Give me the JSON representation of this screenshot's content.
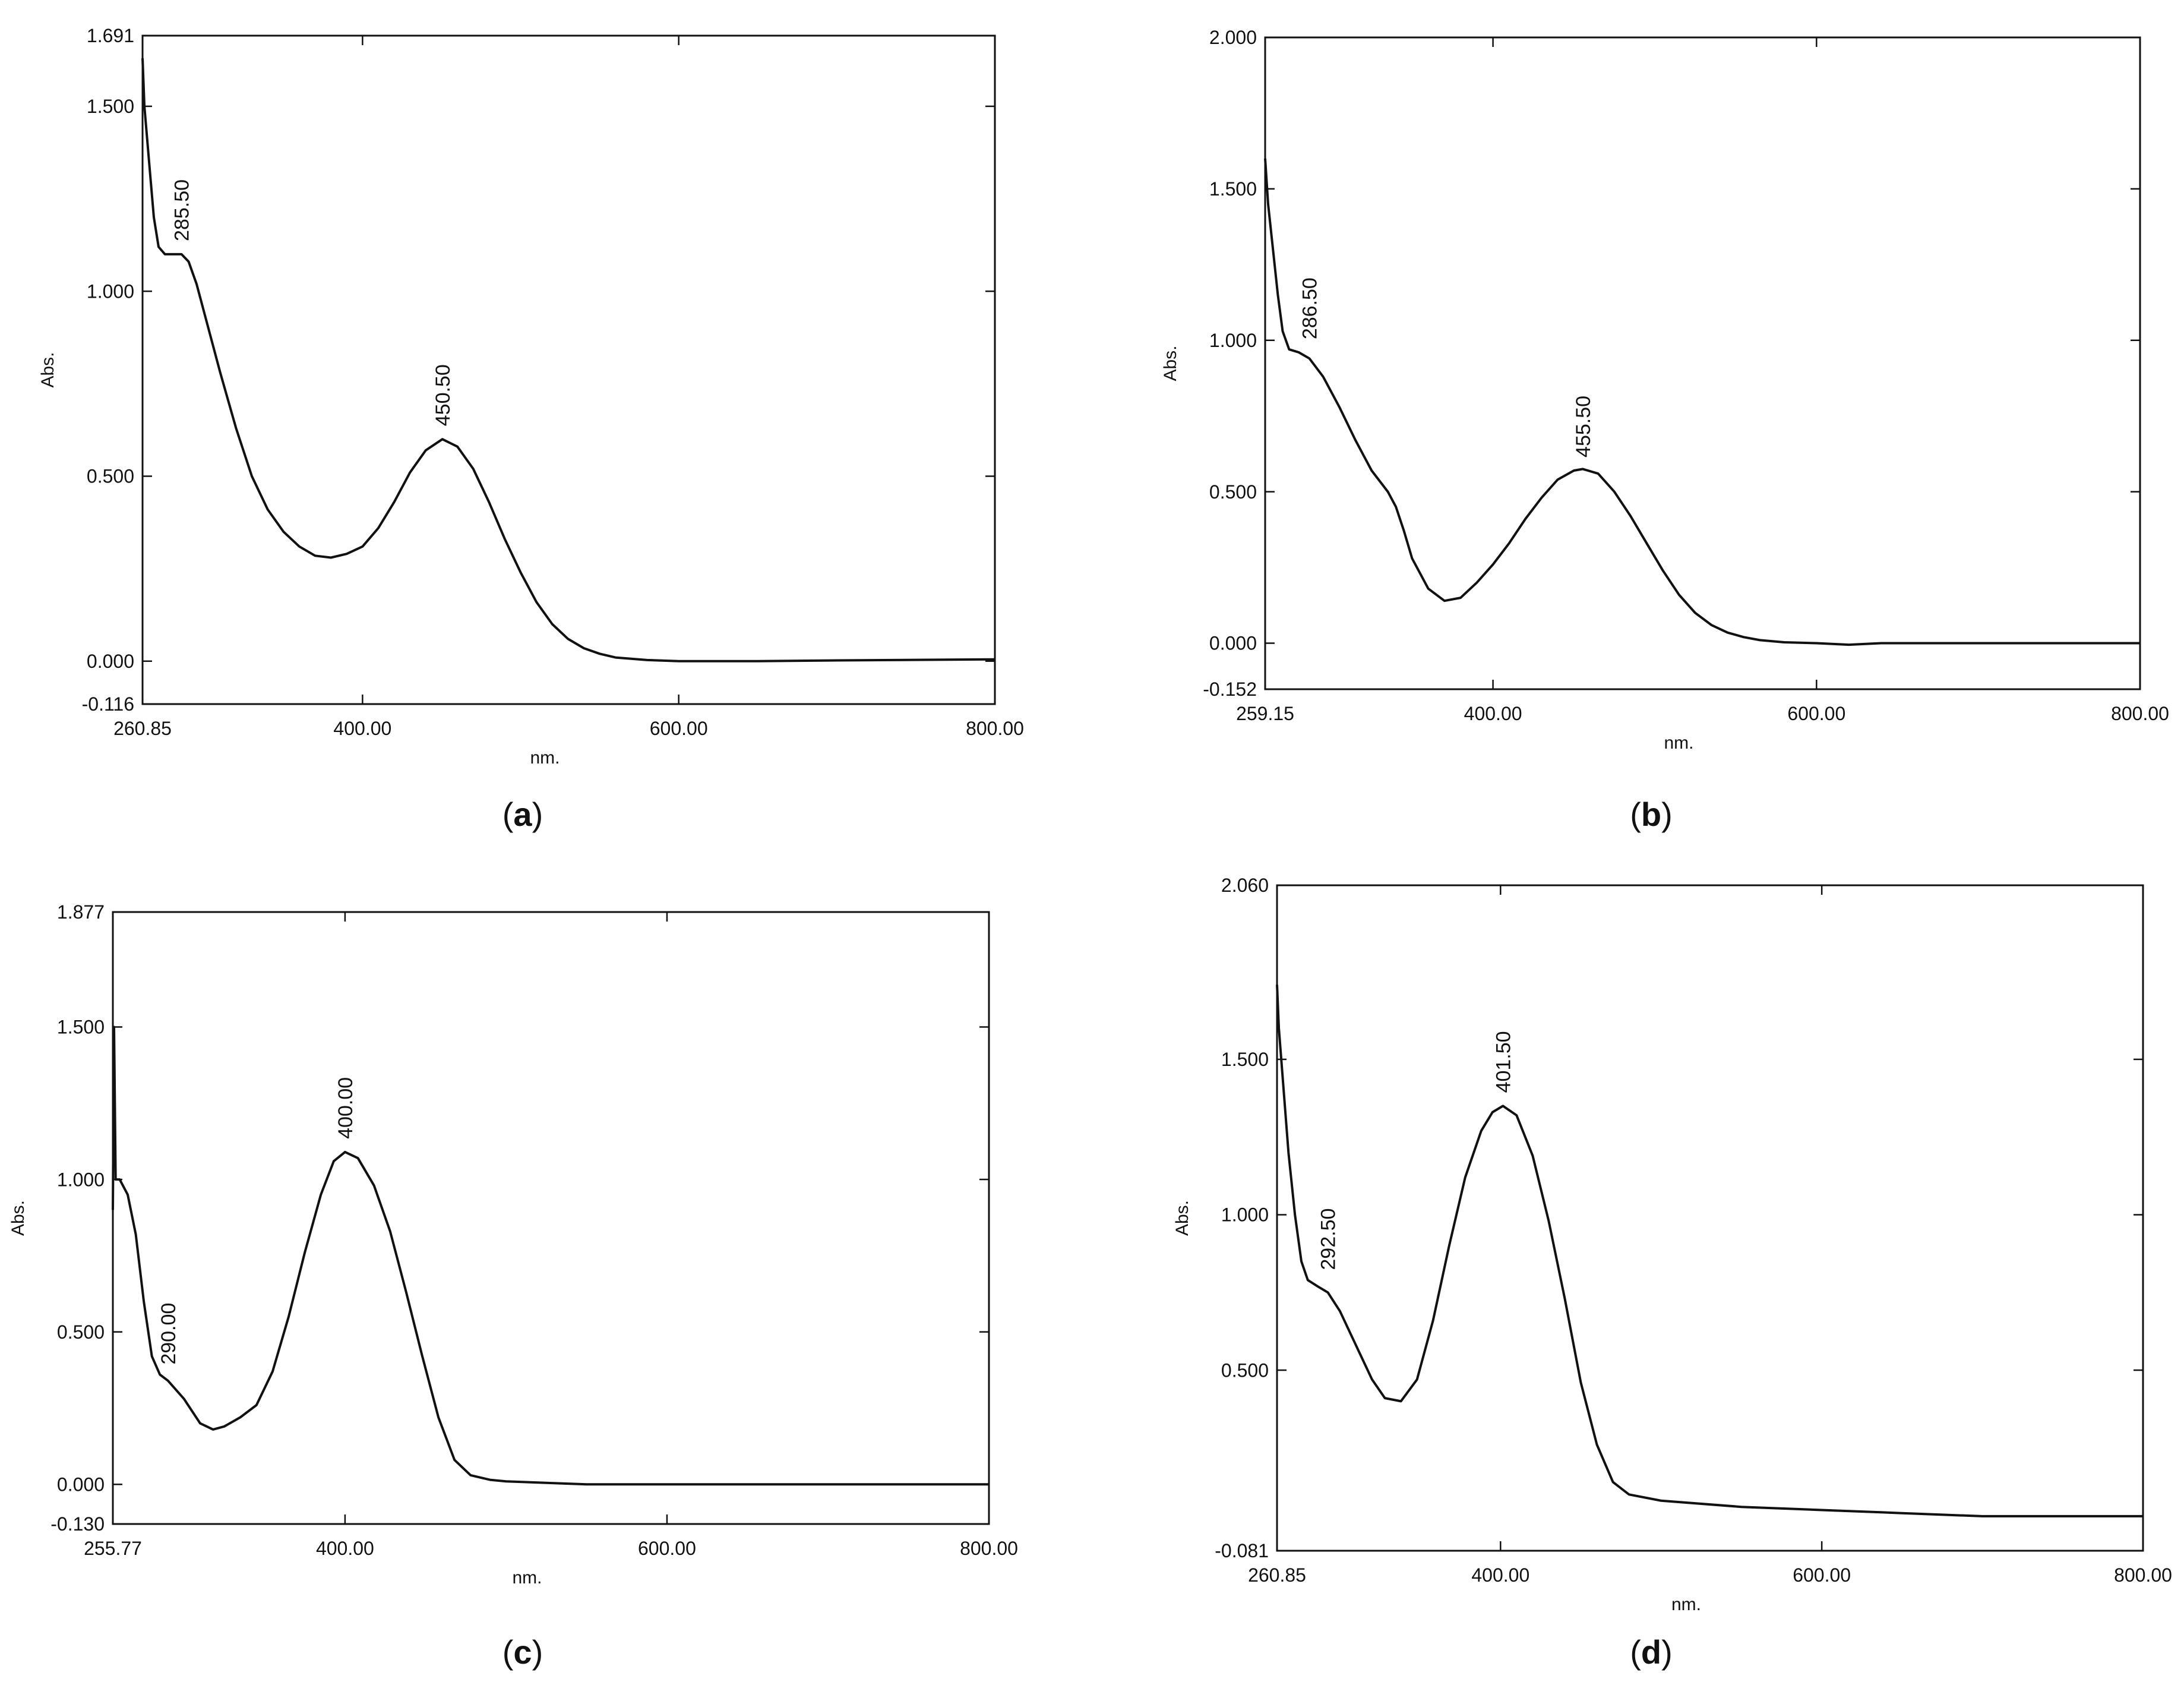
{
  "style": {
    "line_color": "#111111",
    "frame_color": "#111111",
    "background": "#ffffff"
  },
  "chart_data": [
    {
      "type": "line",
      "caption_letter": "a",
      "xlabel": "nm.",
      "ylabel": "Abs.",
      "xlim": [
        260.85,
        800.0
      ],
      "ylim": [
        -0.116,
        1.691
      ],
      "x_ticks": [
        "260.85",
        "400.00",
        "600.00",
        "800.00"
      ],
      "y_ticks": [
        "-0.116",
        "0.000",
        "0.500",
        "1.000",
        "1.500",
        "1.691"
      ],
      "x_tick_values": [
        260.85,
        400,
        600,
        800
      ],
      "y_tick_values": [
        -0.116,
        0.0,
        0.5,
        1.0,
        1.5,
        1.691
      ],
      "peak_labels": [
        {
          "text": "285.50",
          "x": 285.5,
          "y": 1.1
        },
        {
          "text": "450.50",
          "x": 450.5,
          "y": 0.6
        }
      ],
      "series": [
        {
          "points": [
            [
              260.85,
              1.63
            ],
            [
              262,
              1.5
            ],
            [
              265,
              1.35
            ],
            [
              268,
              1.2
            ],
            [
              271,
              1.12
            ],
            [
              275,
              1.1
            ],
            [
              280,
              1.1
            ],
            [
              285.5,
              1.1
            ],
            [
              290,
              1.08
            ],
            [
              295,
              1.02
            ],
            [
              300,
              0.94
            ],
            [
              310,
              0.78
            ],
            [
              320,
              0.63
            ],
            [
              330,
              0.5
            ],
            [
              340,
              0.41
            ],
            [
              350,
              0.35
            ],
            [
              360,
              0.31
            ],
            [
              370,
              0.285
            ],
            [
              380,
              0.28
            ],
            [
              390,
              0.29
            ],
            [
              400,
              0.31
            ],
            [
              410,
              0.36
            ],
            [
              420,
              0.43
            ],
            [
              430,
              0.51
            ],
            [
              440,
              0.57
            ],
            [
              450.5,
              0.6
            ],
            [
              460,
              0.58
            ],
            [
              470,
              0.52
            ],
            [
              480,
              0.43
            ],
            [
              490,
              0.33
            ],
            [
              500,
              0.24
            ],
            [
              510,
              0.16
            ],
            [
              520,
              0.1
            ],
            [
              530,
              0.06
            ],
            [
              540,
              0.035
            ],
            [
              550,
              0.02
            ],
            [
              560,
              0.01
            ],
            [
              580,
              0.003
            ],
            [
              600,
              0.0
            ],
            [
              650,
              0.0
            ],
            [
              700,
              0.002
            ],
            [
              800,
              0.005
            ]
          ]
        }
      ]
    },
    {
      "type": "line",
      "caption_letter": "b",
      "xlabel": "nm.",
      "ylabel": "Abs.",
      "xlim": [
        259.15,
        800.0
      ],
      "ylim": [
        -0.152,
        2.0
      ],
      "x_ticks": [
        "259.15",
        "400.00",
        "600.00",
        "800.00"
      ],
      "y_ticks": [
        "-0.152",
        "0.000",
        "0.500",
        "1.000",
        "1.500",
        "2.000"
      ],
      "x_tick_values": [
        259.15,
        400,
        600,
        800
      ],
      "y_tick_values": [
        -0.152,
        0.0,
        0.5,
        1.0,
        1.5,
        2.0
      ],
      "peak_labels": [
        {
          "text": "286.50",
          "x": 286.5,
          "y": 0.96
        },
        {
          "text": "455.50",
          "x": 455.5,
          "y": 0.57
        }
      ],
      "series": [
        {
          "points": [
            [
              259.15,
              1.6
            ],
            [
              261,
              1.45
            ],
            [
              264,
              1.3
            ],
            [
              267,
              1.15
            ],
            [
              270,
              1.03
            ],
            [
              274,
              0.97
            ],
            [
              280,
              0.96
            ],
            [
              286.5,
              0.94
            ],
            [
              295,
              0.88
            ],
            [
              305,
              0.78
            ],
            [
              315,
              0.67
            ],
            [
              325,
              0.57
            ],
            [
              335,
              0.5
            ],
            [
              340,
              0.45
            ],
            [
              345,
              0.37
            ],
            [
              350,
              0.28
            ],
            [
              360,
              0.18
            ],
            [
              370,
              0.14
            ],
            [
              380,
              0.15
            ],
            [
              390,
              0.2
            ],
            [
              400,
              0.26
            ],
            [
              410,
              0.33
            ],
            [
              420,
              0.41
            ],
            [
              430,
              0.48
            ],
            [
              440,
              0.54
            ],
            [
              450,
              0.57
            ],
            [
              455.5,
              0.575
            ],
            [
              465,
              0.56
            ],
            [
              475,
              0.5
            ],
            [
              485,
              0.42
            ],
            [
              495,
              0.33
            ],
            [
              505,
              0.24
            ],
            [
              515,
              0.16
            ],
            [
              525,
              0.1
            ],
            [
              535,
              0.06
            ],
            [
              545,
              0.035
            ],
            [
              555,
              0.02
            ],
            [
              565,
              0.01
            ],
            [
              580,
              0.003
            ],
            [
              600,
              0.0
            ],
            [
              620,
              -0.005
            ],
            [
              640,
              0.0
            ],
            [
              800,
              0.0
            ]
          ]
        }
      ]
    },
    {
      "type": "line",
      "caption_letter": "c",
      "xlabel": "",
      "ylabel": "Abs.",
      "xlim": [
        255.77,
        800.0
      ],
      "ylim": [
        -0.13,
        1.877
      ],
      "x_ticks": [
        "255.77",
        "400.00",
        "600.00",
        "800.00"
      ],
      "y_ticks": [
        "-0.130",
        "0.000",
        "0.500",
        "1.000",
        "1.500",
        "1.877"
      ],
      "x_tick_values": [
        255.77,
        400,
        600,
        800
      ],
      "y_tick_values": [
        -0.13,
        0.0,
        0.5,
        1.0,
        1.5,
        1.877
      ],
      "under_axis_label": "nm.",
      "peak_labels": [
        {
          "text": "290.00",
          "x": 290.0,
          "y": 0.35
        },
        {
          "text": "400.00",
          "x": 400.0,
          "y": 1.09
        }
      ],
      "series": [
        {
          "points": [
            [
              255.77,
              0.9
            ],
            [
              256.5,
              1.5
            ],
            [
              257.5,
              1.0
            ],
            [
              260,
              1.0
            ],
            [
              265,
              0.95
            ],
            [
              270,
              0.82
            ],
            [
              275,
              0.6
            ],
            [
              280,
              0.42
            ],
            [
              285,
              0.36
            ],
            [
              290,
              0.34
            ],
            [
              300,
              0.28
            ],
            [
              310,
              0.2
            ],
            [
              318,
              0.18
            ],
            [
              325,
              0.19
            ],
            [
              335,
              0.22
            ],
            [
              345,
              0.26
            ],
            [
              355,
              0.37
            ],
            [
              365,
              0.55
            ],
            [
              375,
              0.76
            ],
            [
              385,
              0.95
            ],
            [
              393,
              1.06
            ],
            [
              400,
              1.09
            ],
            [
              408,
              1.07
            ],
            [
              418,
              0.98
            ],
            [
              428,
              0.83
            ],
            [
              438,
              0.63
            ],
            [
              448,
              0.42
            ],
            [
              458,
              0.22
            ],
            [
              468,
              0.08
            ],
            [
              478,
              0.03
            ],
            [
              490,
              0.015
            ],
            [
              500,
              0.01
            ],
            [
              550,
              0.0
            ],
            [
              800,
              0.0
            ]
          ]
        }
      ]
    },
    {
      "type": "line",
      "caption_letter": "d",
      "xlabel": "nm.",
      "ylabel": "Abs.",
      "xlim": [
        260.85,
        800.0
      ],
      "ylim": [
        -0.081,
        2.06
      ],
      "x_ticks": [
        "260.85",
        "400.00",
        "600.00",
        "800.00"
      ],
      "y_ticks": [
        "-0.081",
        "0.500",
        "1.000",
        "1.500",
        "2.060"
      ],
      "x_tick_values": [
        260.85,
        400,
        600,
        800
      ],
      "y_tick_values": [
        -0.081,
        0.5,
        1.0,
        1.5,
        2.06
      ],
      "peak_labels": [
        {
          "text": "292.50",
          "x": 292.5,
          "y": 0.78
        },
        {
          "text": "401.50",
          "x": 401.5,
          "y": 1.35
        }
      ],
      "series": [
        {
          "points": [
            [
              260.85,
              1.74
            ],
            [
              262,
              1.6
            ],
            [
              265,
              1.4
            ],
            [
              268,
              1.2
            ],
            [
              272,
              1.0
            ],
            [
              276,
              0.85
            ],
            [
              280,
              0.79
            ],
            [
              286,
              0.77
            ],
            [
              292.5,
              0.75
            ],
            [
              300,
              0.69
            ],
            [
              310,
              0.58
            ],
            [
              320,
              0.47
            ],
            [
              328,
              0.41
            ],
            [
              338,
              0.4
            ],
            [
              348,
              0.47
            ],
            [
              358,
              0.66
            ],
            [
              368,
              0.9
            ],
            [
              378,
              1.12
            ],
            [
              388,
              1.27
            ],
            [
              395,
              1.33
            ],
            [
              401.5,
              1.35
            ],
            [
              410,
              1.32
            ],
            [
              420,
              1.19
            ],
            [
              430,
              0.98
            ],
            [
              440,
              0.73
            ],
            [
              450,
              0.46
            ],
            [
              460,
              0.26
            ],
            [
              470,
              0.14
            ],
            [
              480,
              0.1
            ],
            [
              500,
              0.08
            ],
            [
              550,
              0.06
            ],
            [
              600,
              0.05
            ],
            [
              650,
              0.04
            ],
            [
              700,
              0.03
            ],
            [
              800,
              0.03
            ]
          ]
        }
      ]
    }
  ]
}
